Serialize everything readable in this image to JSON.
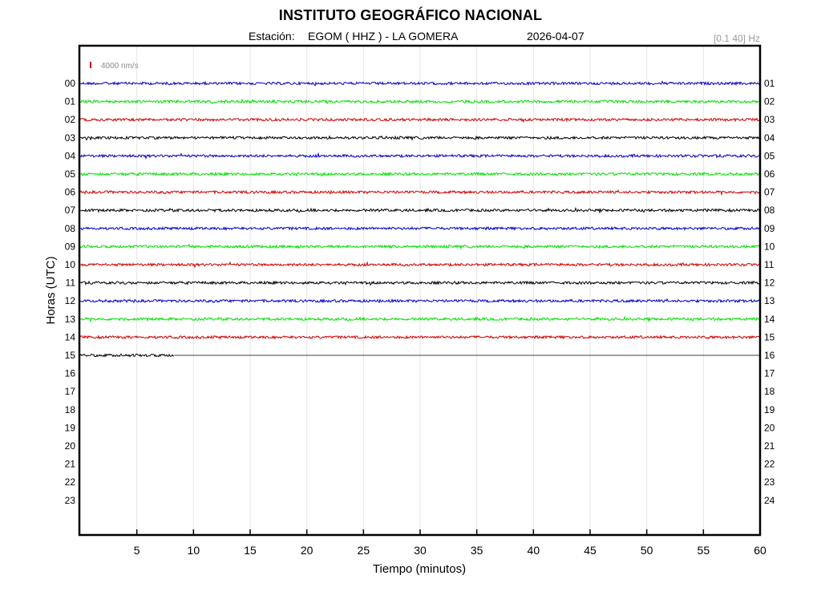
{
  "header": {
    "title": "INSTITUTO GEOGRÁFICO NACIONAL",
    "station_label": "Estación:",
    "station": "EGOM ( HHZ ) - LA GOMERA",
    "date": "2026-04-07",
    "filter": "[0.1 40] Hz"
  },
  "chart_data": {
    "type": "line",
    "title": "INSTITUTO GEOGRÁFICO NACIONAL",
    "xlabel": "Tiempo (minutos)",
    "ylabel": "Horas (UTC)",
    "xlim": [
      0,
      60
    ],
    "x_ticks": [
      5,
      10,
      15,
      20,
      25,
      30,
      35,
      40,
      45,
      50,
      55,
      60
    ],
    "left_hour_labels": [
      "00",
      "01",
      "02",
      "03",
      "04",
      "05",
      "06",
      "07",
      "08",
      "09",
      "10",
      "11",
      "12",
      "13",
      "14",
      "15",
      "16",
      "17",
      "18",
      "19",
      "20",
      "21",
      "22",
      "23"
    ],
    "right_hour_labels": [
      "01",
      "02",
      "03",
      "04",
      "05",
      "06",
      "07",
      "08",
      "09",
      "10",
      "11",
      "12",
      "13",
      "14",
      "15",
      "16",
      "17",
      "18",
      "19",
      "20",
      "21",
      "22",
      "23",
      "24"
    ],
    "scale_bar": {
      "label": "4000 nm/s",
      "color": "#d00000"
    },
    "grid": "vertical",
    "series": [
      {
        "hour": "00",
        "color": "#0000c8",
        "end_minute": 60
      },
      {
        "hour": "01",
        "color": "#00e000",
        "end_minute": 60
      },
      {
        "hour": "02",
        "color": "#d00000",
        "end_minute": 60
      },
      {
        "hour": "03",
        "color": "#000000",
        "end_minute": 60
      },
      {
        "hour": "04",
        "color": "#0000c8",
        "end_minute": 60
      },
      {
        "hour": "05",
        "color": "#00e000",
        "end_minute": 60
      },
      {
        "hour": "06",
        "color": "#d00000",
        "end_minute": 60
      },
      {
        "hour": "07",
        "color": "#000000",
        "end_minute": 60
      },
      {
        "hour": "08",
        "color": "#0000c8",
        "end_minute": 60
      },
      {
        "hour": "09",
        "color": "#00e000",
        "end_minute": 60
      },
      {
        "hour": "10",
        "color": "#d00000",
        "end_minute": 60
      },
      {
        "hour": "11",
        "color": "#000000",
        "end_minute": 60
      },
      {
        "hour": "12",
        "color": "#0000c8",
        "end_minute": 60
      },
      {
        "hour": "13",
        "color": "#00e000",
        "end_minute": 60
      },
      {
        "hour": "14",
        "color": "#d00000",
        "end_minute": 60
      },
      {
        "hour": "15",
        "color": "#000000",
        "end_minute": 8.3
      }
    ]
  }
}
